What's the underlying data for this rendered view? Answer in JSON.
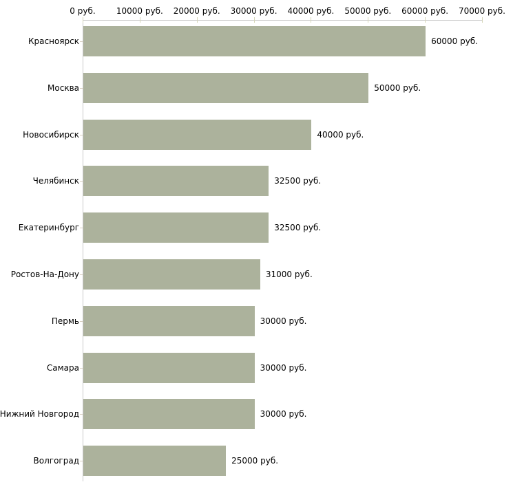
{
  "chart_data": {
    "type": "bar",
    "orientation": "horizontal",
    "title": "",
    "xlabel": "",
    "ylabel": "",
    "unit": "руб.",
    "xlim": [
      0,
      70000
    ],
    "grid": false,
    "legend": false,
    "categories": [
      "Красноярск",
      "Москва",
      "Новосибирск",
      "Челябинск",
      "Екатеринбург",
      "Ростов-На-Дону",
      "Пермь",
      "Самара",
      "Нижний Новгород",
      "Волгоград"
    ],
    "values": [
      60000,
      50000,
      40000,
      32500,
      32500,
      31000,
      30000,
      30000,
      30000,
      25000
    ],
    "value_labels": [
      "60000 руб.",
      "50000 руб.",
      "40000 руб.",
      "32500 руб.",
      "32500 руб.",
      "31000 руб.",
      "30000 руб.",
      "30000 руб.",
      "30000 руб.",
      "25000 руб."
    ],
    "x_ticks": [
      0,
      10000,
      20000,
      30000,
      40000,
      50000,
      60000,
      70000
    ],
    "x_tick_labels": [
      "0 руб.",
      "10000 руб.",
      "20000 руб.",
      "30000 руб.",
      "40000 руб.",
      "50000 руб.",
      "60000 руб.",
      "70000 руб."
    ],
    "colors": {
      "bar": "#acb29c",
      "axis_line": "#c9c9c9",
      "x_tick": "#d6d6b8",
      "category_tick": "#d8cfc0",
      "text": "#000000",
      "background": "#ffffff"
    }
  }
}
